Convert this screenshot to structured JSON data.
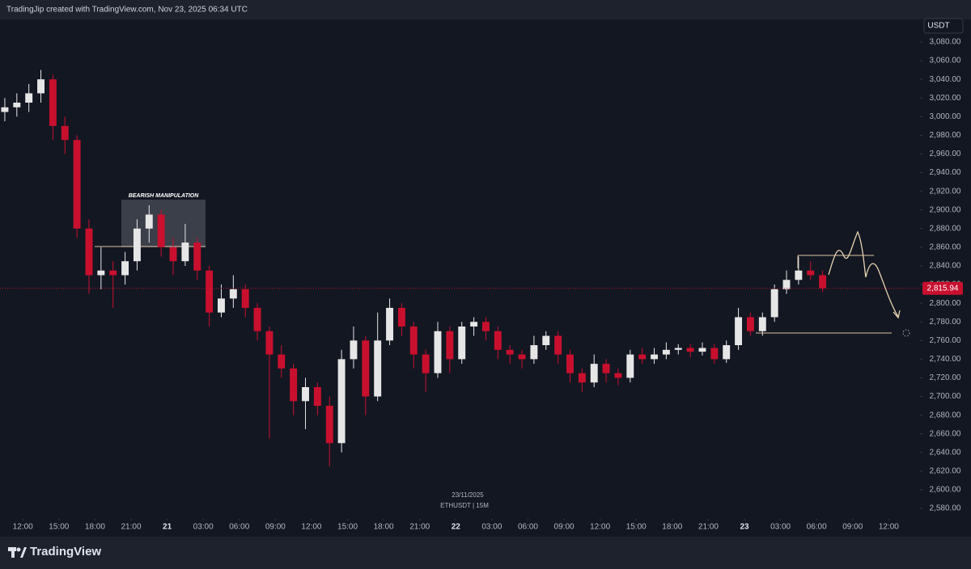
{
  "header": "TradingJip created with TradingView.com, Nov 23, 2025 06:34 UTC",
  "footer": "TradingView",
  "chart_data": {
    "type": "candlestick",
    "currency": "USDT",
    "symbol_label": "ETHUSDT | 15M",
    "date_label": "23/11/2025",
    "annotation": "BEARISH MANIPULATION",
    "last_price": {
      "value": 2815.94,
      "label": "2,815.94"
    },
    "up_color": "#e6e6e6",
    "down_color": "#c8102e",
    "x": [
      10.5,
      11.5,
      12.5,
      13.5,
      14.5,
      15.5,
      16.5,
      17.5,
      18.5,
      19.5,
      20.5,
      21.5,
      22.5,
      23.5,
      24.5,
      25.5,
      26.5,
      27.5,
      28.5,
      29.5,
      30.5,
      31.5,
      32.5,
      33.5,
      34.5,
      35.5,
      36.5,
      37.5,
      38.5,
      39.5,
      40.5,
      41.5,
      42.5,
      43.5,
      44.5,
      45.5,
      46.5,
      47.5,
      48.5,
      49.5,
      50.5,
      51.5,
      52.5,
      53.5,
      54.5,
      55.5,
      56.5,
      57.5,
      58.5,
      59.5,
      60.5,
      61.5,
      62.5,
      63.5,
      64.5,
      65.5,
      66.5,
      67.5,
      68.5,
      69.5,
      70.5,
      71.5,
      72.5,
      73.5,
      74.5,
      75.5,
      76.5,
      77.5,
      78.5
    ],
    "open": [
      3005,
      3010,
      3015,
      3025,
      3040,
      2990,
      2975,
      2880,
      2830,
      2835,
      2830,
      2845,
      2880,
      2895,
      2860,
      2845,
      2865,
      2835,
      2790,
      2805,
      2815,
      2795,
      2770,
      2745,
      2730,
      2695,
      2710,
      2690,
      2650,
      2740,
      2760,
      2700,
      2760,
      2795,
      2775,
      2745,
      2725,
      2770,
      2740,
      2775,
      2780,
      2770,
      2750,
      2745,
      2740,
      2755,
      2765,
      2745,
      2725,
      2715,
      2735,
      2725,
      2720,
      2745,
      2740,
      2745,
      2750,
      2752,
      2748,
      2752,
      2740,
      2755,
      2785,
      2770,
      2785,
      2815,
      2825,
      2835,
      2830
    ],
    "high": [
      3020,
      3025,
      3035,
      3050,
      3045,
      3000,
      2980,
      2890,
      2860,
      2845,
      2855,
      2890,
      2905,
      2900,
      2870,
      2885,
      2870,
      2840,
      2820,
      2830,
      2820,
      2800,
      2775,
      2755,
      2735,
      2720,
      2715,
      2700,
      2750,
      2775,
      2765,
      2790,
      2805,
      2800,
      2780,
      2750,
      2780,
      2775,
      2780,
      2785,
      2785,
      2775,
      2755,
      2750,
      2765,
      2770,
      2770,
      2750,
      2730,
      2745,
      2740,
      2730,
      2750,
      2752,
      2752,
      2758,
      2756,
      2756,
      2758,
      2756,
      2760,
      2795,
      2790,
      2790,
      2820,
      2835,
      2850,
      2845,
      2835
    ],
    "low": [
      2995,
      3000,
      3005,
      3015,
      2975,
      2960,
      2870,
      2810,
      2815,
      2795,
      2820,
      2835,
      2865,
      2850,
      2830,
      2840,
      2825,
      2775,
      2785,
      2795,
      2785,
      2760,
      2655,
      2720,
      2680,
      2665,
      2680,
      2625,
      2640,
      2730,
      2680,
      2695,
      2755,
      2765,
      2730,
      2705,
      2720,
      2725,
      2735,
      2765,
      2760,
      2740,
      2735,
      2730,
      2735,
      2750,
      2735,
      2715,
      2705,
      2710,
      2715,
      2712,
      2715,
      2735,
      2735,
      2740,
      2745,
      2742,
      2744,
      2735,
      2736,
      2750,
      2765,
      2765,
      2780,
      2810,
      2820,
      2825,
      2812
    ],
    "close": [
      3010,
      3015,
      3025,
      3040,
      2990,
      2975,
      2880,
      2830,
      2835,
      2830,
      2845,
      2880,
      2895,
      2860,
      2845,
      2865,
      2835,
      2790,
      2805,
      2815,
      2795,
      2770,
      2745,
      2730,
      2695,
      2710,
      2690,
      2650,
      2740,
      2760,
      2700,
      2760,
      2795,
      2775,
      2745,
      2725,
      2770,
      2740,
      2775,
      2780,
      2770,
      2750,
      2745,
      2740,
      2755,
      2765,
      2745,
      2725,
      2715,
      2735,
      2725,
      2720,
      2745,
      2740,
      2745,
      2750,
      2752,
      2748,
      2752,
      2740,
      2755,
      2785,
      2770,
      2785,
      2815,
      2825,
      2835,
      2830,
      2816
    ],
    "xlim": [
      10.1,
      86.6
    ],
    "ylim": [
      2570.5,
      3107.7
    ],
    "xticks": [
      {
        "value": 12,
        "label": "12:00"
      },
      {
        "value": 15,
        "label": "15:00"
      },
      {
        "value": 18,
        "label": "18:00"
      },
      {
        "value": 21,
        "label": "21:00"
      },
      {
        "value": 24,
        "label": "21"
      },
      {
        "value": 27,
        "label": "03:00"
      },
      {
        "value": 30,
        "label": "06:00"
      },
      {
        "value": 33,
        "label": "09:00"
      },
      {
        "value": 36,
        "label": "12:00"
      },
      {
        "value": 39,
        "label": "15:00"
      },
      {
        "value": 42,
        "label": "18:00"
      },
      {
        "value": 45,
        "label": "21:00"
      },
      {
        "value": 48,
        "label": "22"
      },
      {
        "value": 51,
        "label": "03:00"
      },
      {
        "value": 54,
        "label": "06:00"
      },
      {
        "value": 57,
        "label": "09:00"
      },
      {
        "value": 60,
        "label": "12:00"
      },
      {
        "value": 63,
        "label": "15:00"
      },
      {
        "value": 66,
        "label": "18:00"
      },
      {
        "value": 69,
        "label": "21:00"
      },
      {
        "value": 72,
        "label": "23"
      },
      {
        "value": 75,
        "label": "03:00"
      },
      {
        "value": 78,
        "label": "06:00"
      },
      {
        "value": 81,
        "label": "09:00"
      },
      {
        "value": 84,
        "label": "12:00"
      }
    ],
    "yticks": [
      {
        "value": 2580,
        "label": "2,580.00"
      },
      {
        "value": 2600,
        "label": "2,600.00"
      },
      {
        "value": 2620,
        "label": "2,620.00"
      },
      {
        "value": 2640,
        "label": "2,640.00"
      },
      {
        "value": 2660,
        "label": "2,660.00"
      },
      {
        "value": 2680,
        "label": "2,680.00"
      },
      {
        "value": 2700,
        "label": "2,700.00"
      },
      {
        "value": 2720,
        "label": "2,720.00"
      },
      {
        "value": 2740,
        "label": "2,740.00"
      },
      {
        "value": 2760,
        "label": "2,760.00"
      },
      {
        "value": 2780,
        "label": "2,780.00"
      },
      {
        "value": 2800,
        "label": "2,800.00"
      },
      {
        "value": 2820,
        "label": "2,820.00"
      },
      {
        "value": 2840,
        "label": "2,840.00"
      },
      {
        "value": 2860,
        "label": "2,860.00"
      },
      {
        "value": 2880,
        "label": "2,880.00"
      },
      {
        "value": 2900,
        "label": "2,900.00"
      },
      {
        "value": 2920,
        "label": "2,920.00"
      },
      {
        "value": 2940,
        "label": "2,940.00"
      },
      {
        "value": 2960,
        "label": "2,960.00"
      },
      {
        "value": 2980,
        "label": "2,980.00"
      },
      {
        "value": 3000,
        "label": "3,000.00"
      },
      {
        "value": 3020,
        "label": "3,020.00"
      },
      {
        "value": 3040,
        "label": "3,040.00"
      },
      {
        "value": 3060,
        "label": "3,060.00"
      },
      {
        "value": 3080,
        "label": "3,080.00"
      }
    ]
  }
}
